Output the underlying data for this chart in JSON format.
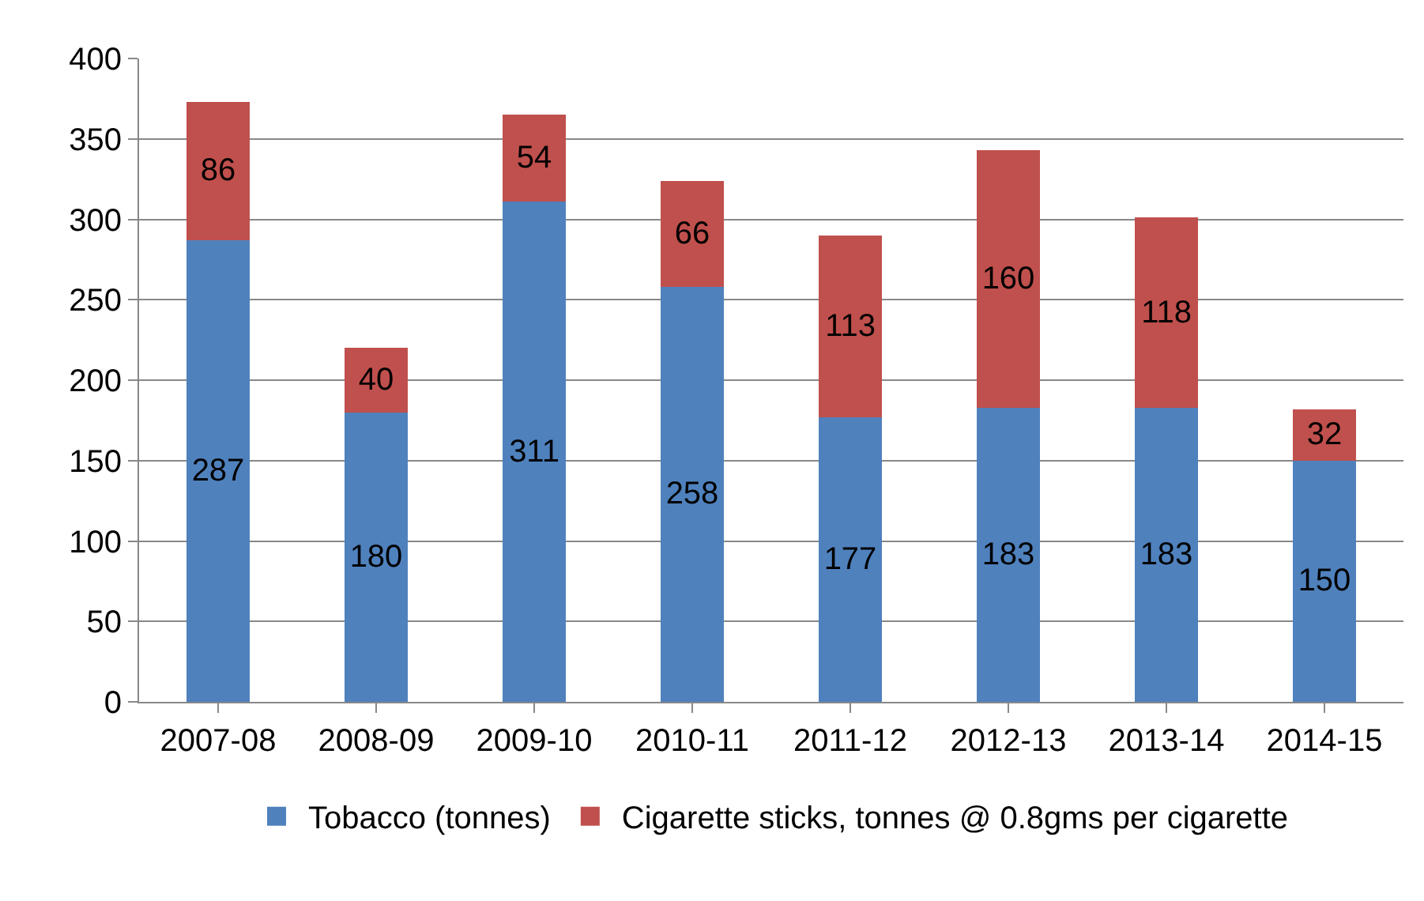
{
  "chart_data": {
    "type": "bar",
    "stacked": true,
    "categories": [
      "2007-08",
      "2008-09",
      "2009-10",
      "2010-11",
      "2011-12",
      "2012-13",
      "2013-14",
      "2014-15"
    ],
    "series": [
      {
        "name": "Tobacco (tonnes)",
        "color": "#4f81bd",
        "values": [
          287,
          180,
          311,
          258,
          177,
          183,
          183,
          150
        ]
      },
      {
        "name": "Cigarette sticks, tonnes @ 0.8gms per cigarette",
        "color": "#c0504d",
        "values": [
          86,
          40,
          54,
          66,
          113,
          160,
          118,
          32
        ]
      }
    ],
    "ylim": [
      0,
      400
    ],
    "yticks": [
      0,
      50,
      100,
      150,
      200,
      250,
      300,
      350,
      400
    ],
    "grid": "y",
    "legend": "bottom",
    "data_labels": true
  }
}
